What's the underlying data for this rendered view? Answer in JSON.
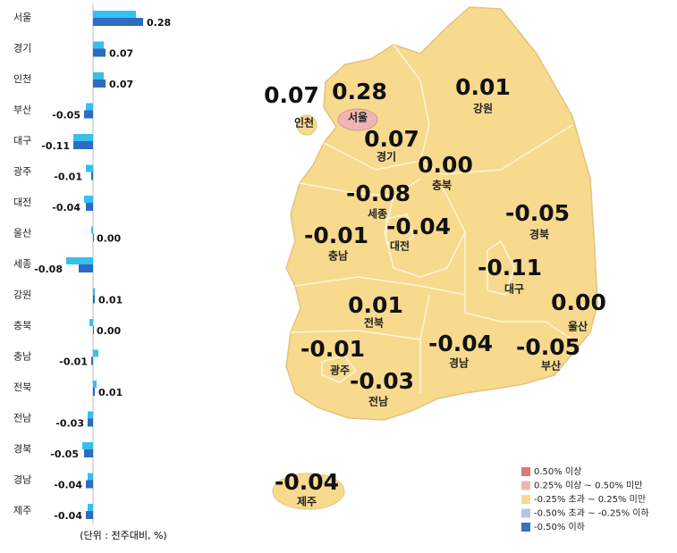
{
  "chart_data": {
    "type": "bar",
    "orientation": "horizontal",
    "categories": [
      "서울",
      "경기",
      "인천",
      "부산",
      "대구",
      "광주",
      "대전",
      "울산",
      "세종",
      "강원",
      "충북",
      "충남",
      "전북",
      "전남",
      "경북",
      "경남",
      "제주"
    ],
    "series": [
      {
        "color": "#35c0f0",
        "values": [
          0.24,
          0.06,
          0.06,
          -0.04,
          -0.11,
          -0.04,
          -0.05,
          -0.01,
          -0.15,
          0.01,
          -0.02,
          0.03,
          0.02,
          -0.03,
          -0.06,
          -0.03,
          -0.03
        ]
      },
      {
        "color": "#2d6cc0",
        "values": [
          0.28,
          0.07,
          0.07,
          -0.05,
          -0.11,
          -0.01,
          -0.04,
          0.0,
          -0.08,
          0.01,
          0.0,
          -0.01,
          0.01,
          -0.03,
          -0.05,
          -0.04,
          -0.04
        ],
        "value_labels": [
          "0.28",
          "0.07",
          "0.07",
          "-0.05",
          "-0.11",
          "-0.01",
          "-0.04",
          "0.00",
          "-0.08",
          "0.01",
          "0.00",
          "-0.01",
          "0.01",
          "-0.03",
          "-0.05",
          "-0.04",
          "-0.04"
        ]
      }
    ]
  },
  "note": "(단위 : 전주대비, %)",
  "legend": [
    {
      "label": "0.50% 이상",
      "color": "#e07777"
    },
    {
      "label": "0.25% 이상 ~ 0.50% 미만",
      "color": "#f1b4b4"
    },
    {
      "label": "-0.25% 초과 ~ 0.25% 미만",
      "color": "#f8da8e"
    },
    {
      "label": "-0.50% 초과 ~ -0.25% 이하",
      "color": "#b4c6e7"
    },
    {
      "label": "-0.50% 이하",
      "color": "#3a6fc2"
    }
  ]
}
